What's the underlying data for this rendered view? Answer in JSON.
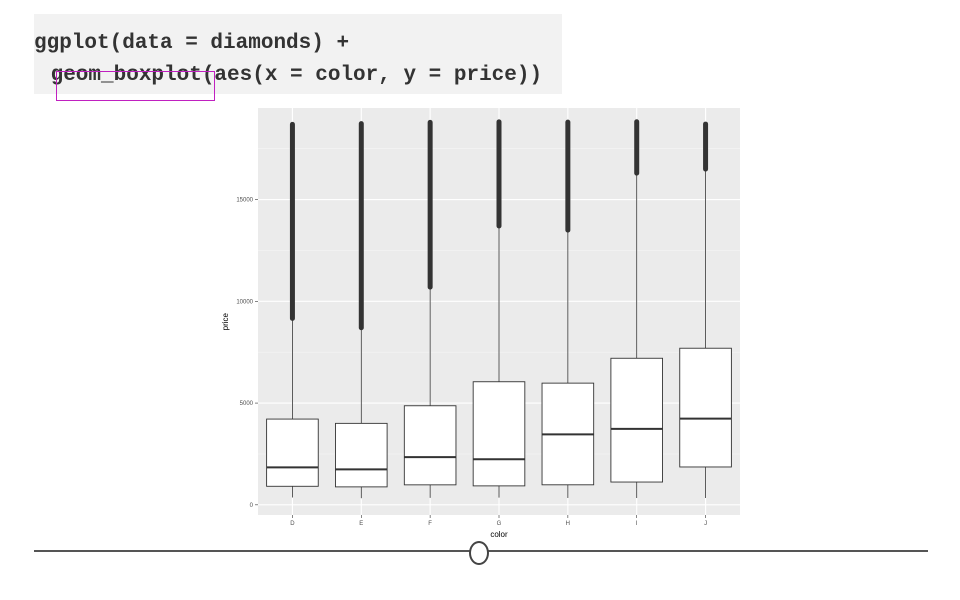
{
  "code": {
    "line1": "ggplot(data = diamonds) +",
    "line2": " geom_boxplot(aes(x = color, y = price))",
    "highlight_color": "#c020c0"
  },
  "chart_data": {
    "type": "boxplot",
    "xlabel": "color",
    "ylabel": "price",
    "ylim": [
      -500,
      19500
    ],
    "yticks": [
      0,
      5000,
      10000,
      15000
    ],
    "grid": true,
    "panel_background": "#ebebeb",
    "categories": [
      "D",
      "E",
      "F",
      "G",
      "H",
      "I",
      "J"
    ],
    "boxes": [
      {
        "category": "D",
        "min": 357,
        "q1": 911,
        "median": 1838,
        "q3": 4214,
        "whisker_high": 9160,
        "max": 18693
      },
      {
        "category": "E",
        "min": 326,
        "q1": 882,
        "median": 1739,
        "q3": 4003,
        "whisker_high": 8700,
        "max": 18731
      },
      {
        "category": "F",
        "min": 342,
        "q1": 982,
        "median": 2344,
        "q3": 4868,
        "whisker_high": 10700,
        "max": 18791
      },
      {
        "category": "G",
        "min": 354,
        "q1": 931,
        "median": 2242,
        "q3": 6048,
        "whisker_high": 13700,
        "max": 18818
      },
      {
        "category": "H",
        "min": 337,
        "q1": 984,
        "median": 3460,
        "q3": 5980,
        "whisker_high": 13500,
        "max": 18803
      },
      {
        "category": "I",
        "min": 334,
        "q1": 1120,
        "median": 3730,
        "q3": 7202,
        "whisker_high": 16300,
        "max": 18823
      },
      {
        "category": "J",
        "min": 335,
        "q1": 1860,
        "median": 4234,
        "q3": 7695,
        "whisker_high": 16500,
        "max": 18710
      }
    ]
  },
  "slider": {
    "track_color": "#555555"
  }
}
